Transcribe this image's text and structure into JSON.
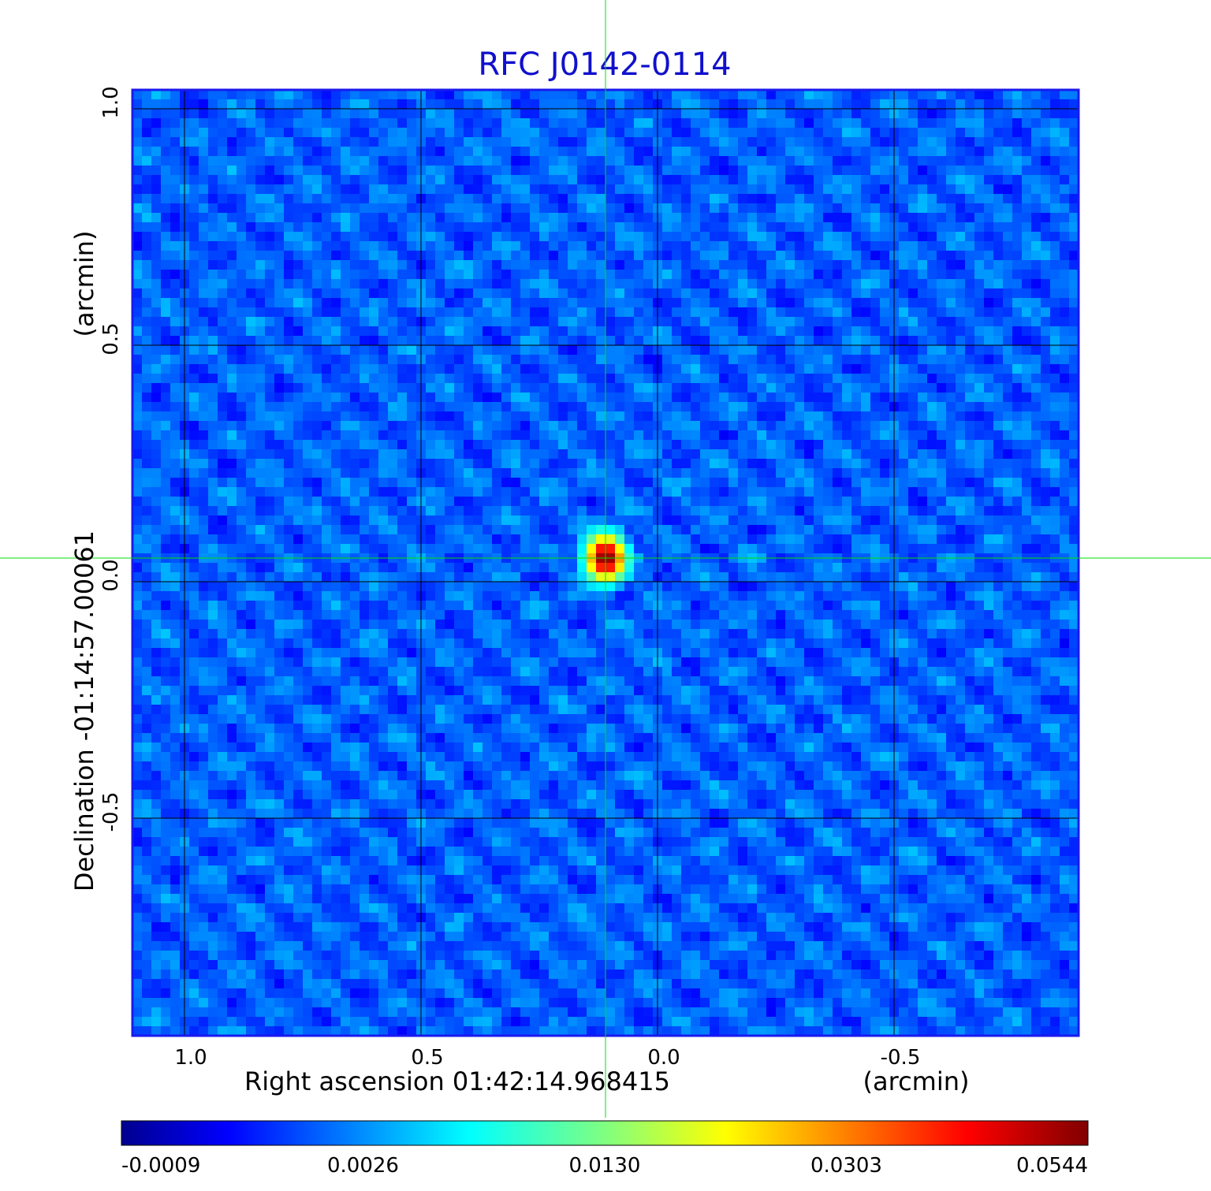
{
  "chart_data": {
    "type": "heatmap",
    "title": "RFC J0142-0114",
    "xlabel": "Right ascension  01:42:14.968415",
    "xunit": "(arcmin)",
    "ylabel": "Declination  -01:14:57.00061",
    "yunit": "(arcmin)",
    "xlim": [
      1.11,
      -0.89
    ],
    "ylim": [
      -0.96,
      1.04
    ],
    "x_ticks": [
      1.0,
      0.5,
      0.0,
      -0.5
    ],
    "x_tick_labels": [
      "1.0",
      "0.5",
      "0.0",
      "-0.5"
    ],
    "y_ticks": [
      1.0,
      0.5,
      0.0,
      -0.5
    ],
    "y_tick_labels": [
      "1.0",
      "0.5",
      "0.0",
      "-0.5"
    ],
    "grid": true,
    "crosshair": {
      "x": 0.11,
      "y": 0.05,
      "color": "#00e000"
    },
    "colormap": "jet",
    "colorbar": {
      "ticks": [
        -0.0009,
        0.0026,
        0.013,
        0.0303,
        0.0544
      ],
      "tick_labels": [
        "-0.0009",
        "0.0026",
        "0.0130",
        "0.0303",
        "0.0544"
      ]
    },
    "peak": {
      "x": 0.11,
      "y": 0.05,
      "value": 0.0544
    },
    "background_level": 0.0008,
    "title_color": "#1010cc",
    "frame_color": "#1a1aee"
  }
}
